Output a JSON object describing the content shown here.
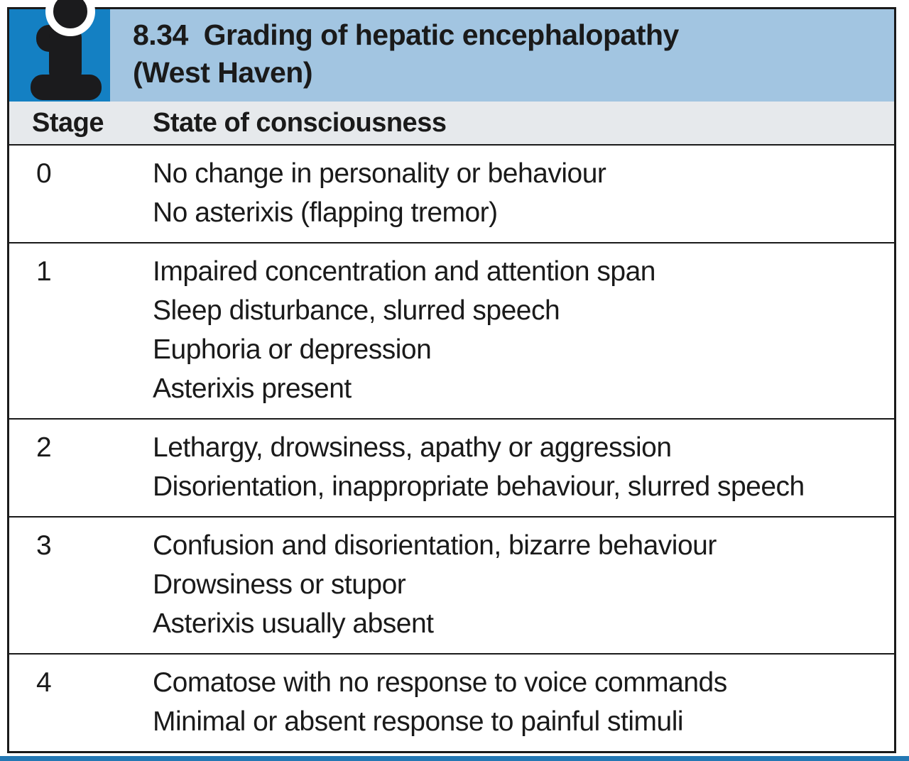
{
  "infobox": {
    "number": "8.34",
    "title": "Grading of hepatic encephalopathy",
    "subtitle": "(West Haven)",
    "icon": "info-icon",
    "columns": {
      "stage": "Stage",
      "state": "State of consciousness"
    },
    "rows": [
      {
        "stage": "0",
        "lines": [
          "No change in personality or behaviour",
          "No asterixis (flapping tremor)"
        ]
      },
      {
        "stage": "1",
        "lines": [
          "Impaired concentration and attention span",
          "Sleep disturbance, slurred speech",
          "Euphoria or depression",
          "Asterixis present"
        ]
      },
      {
        "stage": "2",
        "lines": [
          "Lethargy, drowsiness, apathy or aggression",
          "Disorientation, inappropriate behaviour, slurred speech"
        ]
      },
      {
        "stage": "3",
        "lines": [
          "Confusion and disorientation, bizarre behaviour",
          "Drowsiness or stupor",
          "Asterixis usually absent"
        ]
      },
      {
        "stage": "4",
        "lines": [
          "Comatose with no response to voice commands",
          "Minimal or absent response to painful stimuli"
        ]
      }
    ],
    "colors": {
      "icon_bg": "#1480c3",
      "title_bg": "#a2c5e1",
      "header_bg": "#e6e9ec",
      "text": "#1a1a1a",
      "border": "#1a1a1a",
      "bottom_rule": "#2478b4"
    }
  }
}
